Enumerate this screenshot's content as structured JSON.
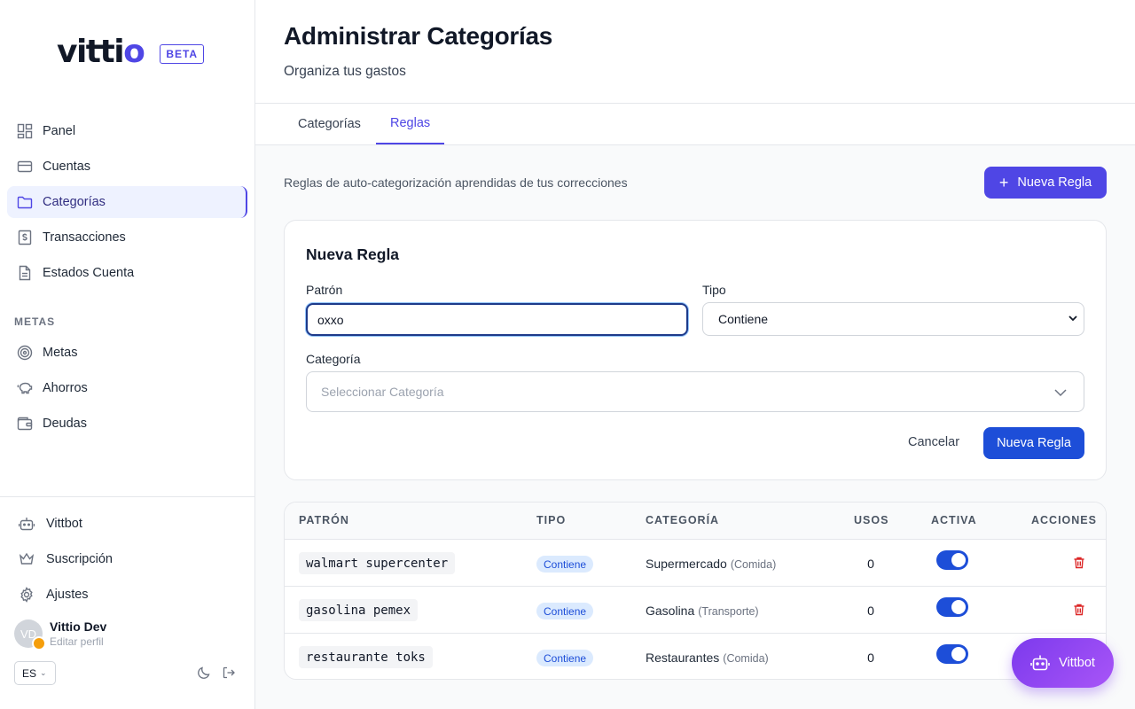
{
  "brand": {
    "logo": "vittio",
    "badge": "BETA",
    "accent": "#4f46e5"
  },
  "nav": {
    "items": [
      {
        "label": "Panel",
        "icon": "grid-icon"
      },
      {
        "label": "Cuentas",
        "icon": "credit-card-icon"
      },
      {
        "label": "Categorías",
        "icon": "folder-icon",
        "active": true
      },
      {
        "label": "Transacciones",
        "icon": "dollar-receipt-icon"
      },
      {
        "label": "Estados Cuenta",
        "icon": "document-icon"
      }
    ],
    "section_label": "METAS",
    "meta_items": [
      {
        "label": "Metas",
        "icon": "target-icon"
      },
      {
        "label": "Ahorros",
        "icon": "piggy-bank-icon"
      },
      {
        "label": "Deudas",
        "icon": "wallet-icon"
      }
    ]
  },
  "sidebar_bottom": {
    "items": [
      {
        "label": "Vittbot",
        "icon": "bot-icon"
      },
      {
        "label": "Suscripción",
        "icon": "crown-icon"
      },
      {
        "label": "Ajustes",
        "icon": "gear-icon"
      }
    ],
    "user": {
      "initials": "VD",
      "name": "Vittio Dev",
      "edit": "Editar perfil"
    },
    "language": "ES"
  },
  "header": {
    "title": "Administrar Categorías",
    "subtitle": "Organiza tus gastos"
  },
  "tabs": [
    {
      "label": "Categorías"
    },
    {
      "label": "Reglas",
      "active": true
    }
  ],
  "rules": {
    "description": "Reglas de auto-categorización aprendidas de tus correcciones",
    "new_button": "Nueva Regla"
  },
  "form": {
    "title": "Nueva Regla",
    "pattern_label": "Patrón",
    "pattern_value": "oxxo",
    "type_label": "Tipo",
    "type_value": "Contiene",
    "category_label": "Categoría",
    "category_placeholder": "Seleccionar Categoría",
    "cancel": "Cancelar",
    "submit": "Nueva Regla"
  },
  "table": {
    "headers": [
      "PATRÓN",
      "TIPO",
      "CATEGORÍA",
      "USOS",
      "ACTIVA",
      "ACCIONES"
    ],
    "rows": [
      {
        "pattern": "walmart supercenter",
        "type": "Contiene",
        "category": "Supermercado",
        "parent": "(Comida)",
        "uses": "0",
        "active": true
      },
      {
        "pattern": "gasolina pemex",
        "type": "Contiene",
        "category": "Gasolina",
        "parent": "(Transporte)",
        "uses": "0",
        "active": true
      },
      {
        "pattern": "restaurante toks",
        "type": "Contiene",
        "category": "Restaurantes",
        "parent": "(Comida)",
        "uses": "0",
        "active": true
      }
    ]
  },
  "fab": {
    "label": "Vittbot",
    "icon": "bot-icon"
  }
}
